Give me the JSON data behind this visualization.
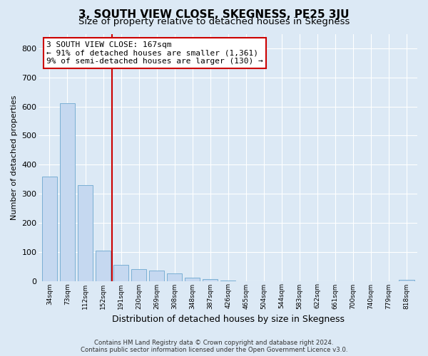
{
  "title": "3, SOUTH VIEW CLOSE, SKEGNESS, PE25 3JU",
  "subtitle": "Size of property relative to detached houses in Skegness",
  "xlabel": "Distribution of detached houses by size in Skegness",
  "ylabel": "Number of detached properties",
  "bar_labels": [
    "34sqm",
    "73sqm",
    "112sqm",
    "152sqm",
    "191sqm",
    "230sqm",
    "269sqm",
    "308sqm",
    "348sqm",
    "387sqm",
    "426sqm",
    "465sqm",
    "504sqm",
    "544sqm",
    "583sqm",
    "622sqm",
    "661sqm",
    "700sqm",
    "740sqm",
    "779sqm",
    "818sqm"
  ],
  "bar_values": [
    360,
    610,
    330,
    105,
    55,
    40,
    35,
    25,
    10,
    5,
    2,
    0,
    0,
    0,
    0,
    0,
    0,
    0,
    0,
    0,
    3
  ],
  "bar_color": "#c5d8f0",
  "bar_edge_color": "#7aafd4",
  "background_color": "#dce9f5",
  "grid_color": "#ffffff",
  "annotation_text": "3 SOUTH VIEW CLOSE: 167sqm\n← 91% of detached houses are smaller (1,361)\n9% of semi-detached houses are larger (130) →",
  "annotation_box_color": "#ffffff",
  "annotation_box_edge": "#cc0000",
  "red_line_color": "#cc0000",
  "ylim": [
    0,
    850
  ],
  "yticks": [
    0,
    100,
    200,
    300,
    400,
    500,
    600,
    700,
    800
  ],
  "footnote": "Contains HM Land Registry data © Crown copyright and database right 2024.\nContains public sector information licensed under the Open Government Licence v3.0.",
  "title_fontsize": 11,
  "subtitle_fontsize": 9.5,
  "figsize": [
    6.0,
    5.0
  ],
  "dpi": 100
}
